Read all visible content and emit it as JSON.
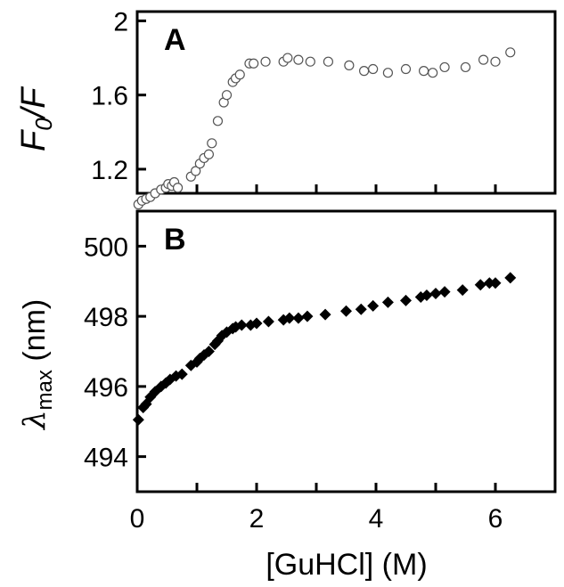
{
  "chart_data": [
    {
      "panel": "A",
      "type": "scatter",
      "marker": "open-circle",
      "ylabel_main": "F",
      "ylabel_sub": "0",
      "ylabel_tail": "/F",
      "xlim": [
        0,
        7
      ],
      "ylim": [
        1.07,
        2.05
      ],
      "yticks": [
        1.2,
        1.6,
        2
      ],
      "ytick_labels": [
        "1.2",
        "1.6",
        "2"
      ],
      "xticks": [
        0,
        1,
        2,
        3,
        4,
        5,
        6
      ],
      "points": [
        [
          0.02,
          1.01
        ],
        [
          0.08,
          1.03
        ],
        [
          0.15,
          1.04
        ],
        [
          0.22,
          1.05
        ],
        [
          0.3,
          1.07
        ],
        [
          0.4,
          1.09
        ],
        [
          0.48,
          1.1
        ],
        [
          0.52,
          1.12
        ],
        [
          0.58,
          1.11
        ],
        [
          0.62,
          1.13
        ],
        [
          0.68,
          1.1
        ],
        [
          0.9,
          1.16
        ],
        [
          0.98,
          1.19
        ],
        [
          1.05,
          1.23
        ],
        [
          1.12,
          1.26
        ],
        [
          1.2,
          1.28
        ],
        [
          1.25,
          1.34
        ],
        [
          1.35,
          1.46
        ],
        [
          1.45,
          1.56
        ],
        [
          1.5,
          1.6
        ],
        [
          1.6,
          1.67
        ],
        [
          1.65,
          1.69
        ],
        [
          1.72,
          1.71
        ],
        [
          1.88,
          1.77
        ],
        [
          1.95,
          1.77
        ],
        [
          2.15,
          1.78
        ],
        [
          2.45,
          1.78
        ],
        [
          2.52,
          1.8
        ],
        [
          2.7,
          1.79
        ],
        [
          2.9,
          1.78
        ],
        [
          3.2,
          1.78
        ],
        [
          3.55,
          1.76
        ],
        [
          3.8,
          1.73
        ],
        [
          3.95,
          1.74
        ],
        [
          4.2,
          1.72
        ],
        [
          4.5,
          1.74
        ],
        [
          4.8,
          1.73
        ],
        [
          4.95,
          1.72
        ],
        [
          5.15,
          1.75
        ],
        [
          5.5,
          1.75
        ],
        [
          5.8,
          1.79
        ],
        [
          6.0,
          1.78
        ],
        [
          6.25,
          1.83
        ]
      ]
    },
    {
      "panel": "B",
      "type": "scatter",
      "marker": "filled-diamond",
      "ylabel_greek": "λ",
      "ylabel_sub": "max",
      "ylabel_tail": " (nm)",
      "xlabel": "[GuHCl] (M)",
      "xlim": [
        0,
        7
      ],
      "ylim": [
        493.0,
        501.0
      ],
      "yticks": [
        494,
        496,
        498,
        500
      ],
      "ytick_labels": [
        "494",
        "496",
        "498",
        "500"
      ],
      "xticks": [
        0,
        1,
        2,
        3,
        4,
        5,
        6
      ],
      "xtick_labels": [
        "0",
        "2",
        "4",
        "6"
      ],
      "xtick_label_values": [
        0,
        2,
        4,
        6
      ],
      "points": [
        [
          0.02,
          495.05
        ],
        [
          0.1,
          495.4
        ],
        [
          0.15,
          495.5
        ],
        [
          0.22,
          495.7
        ],
        [
          0.3,
          495.85
        ],
        [
          0.4,
          496.0
        ],
        [
          0.48,
          496.1
        ],
        [
          0.55,
          496.2
        ],
        [
          0.65,
          496.3
        ],
        [
          0.75,
          496.35
        ],
        [
          0.9,
          496.6
        ],
        [
          1.0,
          496.7
        ],
        [
          1.05,
          496.8
        ],
        [
          1.12,
          496.9
        ],
        [
          1.2,
          497.0
        ],
        [
          1.3,
          497.2
        ],
        [
          1.35,
          497.3
        ],
        [
          1.42,
          497.45
        ],
        [
          1.5,
          497.55
        ],
        [
          1.6,
          497.65
        ],
        [
          1.65,
          497.7
        ],
        [
          1.75,
          497.75
        ],
        [
          1.9,
          497.75
        ],
        [
          2.0,
          497.8
        ],
        [
          2.2,
          497.85
        ],
        [
          2.45,
          497.9
        ],
        [
          2.55,
          497.95
        ],
        [
          2.7,
          497.95
        ],
        [
          2.85,
          498.0
        ],
        [
          3.15,
          498.05
        ],
        [
          3.5,
          498.15
        ],
        [
          3.75,
          498.2
        ],
        [
          3.95,
          498.3
        ],
        [
          4.2,
          498.4
        ],
        [
          4.5,
          498.45
        ],
        [
          4.75,
          498.55
        ],
        [
          4.85,
          498.6
        ],
        [
          5.0,
          498.65
        ],
        [
          5.15,
          498.7
        ],
        [
          5.45,
          498.75
        ],
        [
          5.75,
          498.9
        ],
        [
          5.9,
          498.95
        ],
        [
          6.0,
          498.95
        ],
        [
          6.25,
          499.1
        ]
      ]
    }
  ]
}
